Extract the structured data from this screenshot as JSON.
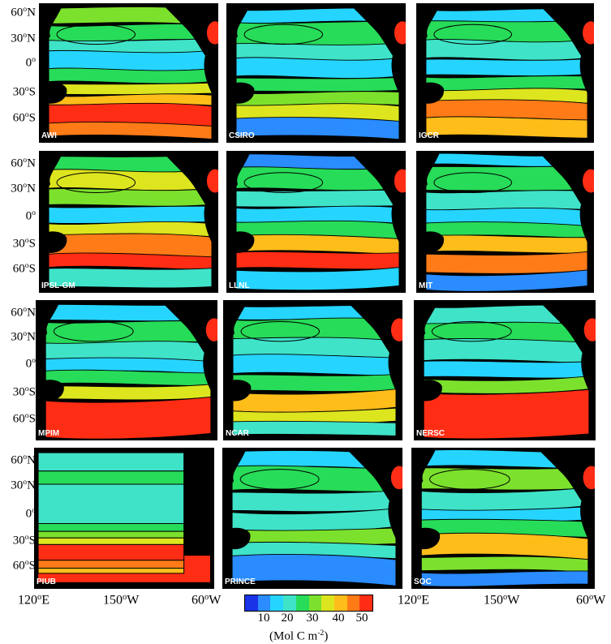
{
  "figure": {
    "panels": [
      {
        "label": "AWI"
      },
      {
        "label": "CSIRO"
      },
      {
        "label": "IGCR"
      },
      {
        "label": "IPSL-GM"
      },
      {
        "label": "LLNL"
      },
      {
        "label": "MIT"
      },
      {
        "label": "MPIM"
      },
      {
        "label": "NCAR"
      },
      {
        "label": "NERSC"
      },
      {
        "label": "PIUB"
      },
      {
        "label": "PRINCE"
      },
      {
        "label": "SOC"
      }
    ],
    "lat_labels": [
      {
        "value": "60",
        "hemi": "N"
      },
      {
        "value": "30",
        "hemi": "N"
      },
      {
        "value": "0",
        "hemi": ""
      },
      {
        "value": "30",
        "hemi": "S"
      },
      {
        "value": "60",
        "hemi": "S"
      }
    ],
    "lon_labels": [
      {
        "value": "120",
        "hemi": "E"
      },
      {
        "value": "150",
        "hemi": "W"
      },
      {
        "value": "60",
        "hemi": "W"
      }
    ]
  },
  "colorbar": {
    "colors": [
      "#1a33e6",
      "#2a8cff",
      "#25d5ff",
      "#3fe3c8",
      "#27dc58",
      "#7ce12c",
      "#dde51e",
      "#ffbd1a",
      "#ff7b17",
      "#ff2d14"
    ],
    "ticks": [
      "10",
      "20",
      "30",
      "40",
      "50"
    ],
    "unit_prefix": "(Mol C m",
    "unit_exp": "-2",
    "unit_suffix": ")"
  },
  "palette": {
    "land": "#000000",
    "ocean_background": "#000000"
  }
}
